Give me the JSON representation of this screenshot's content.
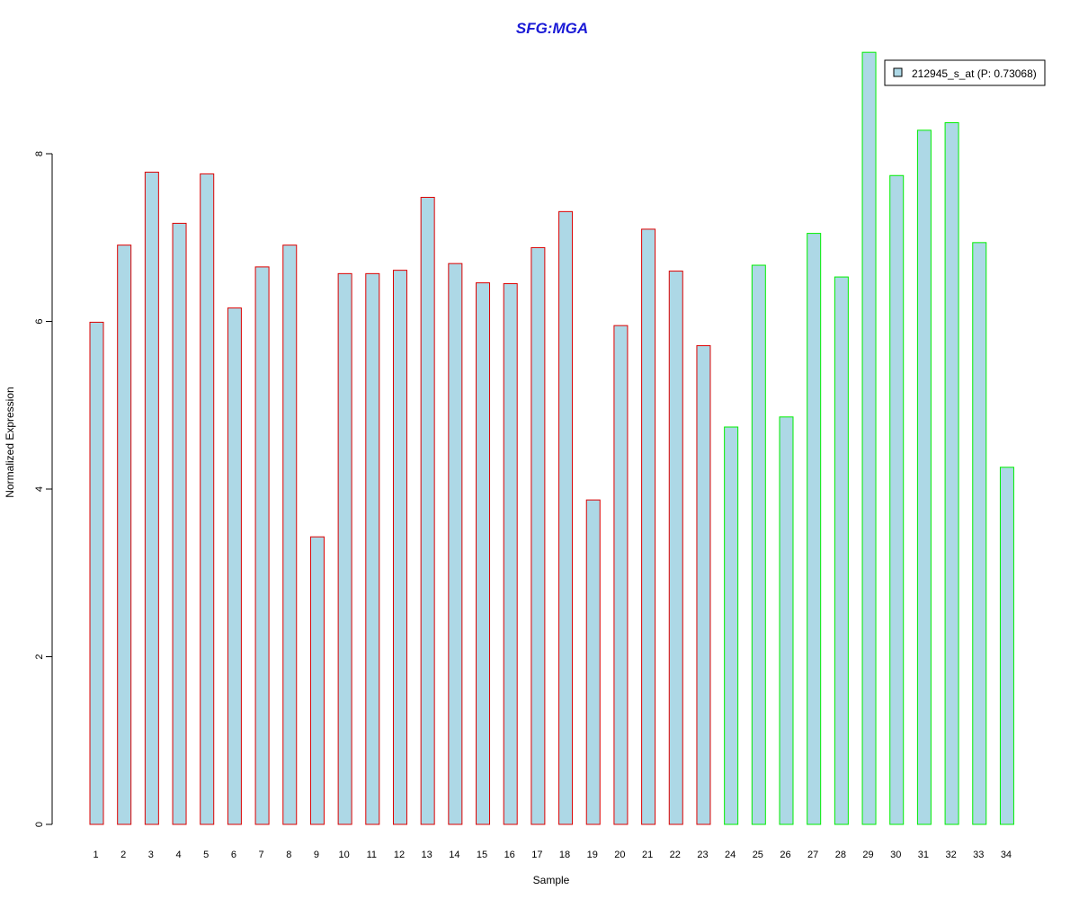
{
  "chart_data": {
    "type": "bar",
    "title": "SFG:MGA",
    "xlabel": "Sample",
    "ylabel": "Normalized Expression",
    "ylim": [
      0,
      9.3
    ],
    "y_ticks": [
      0,
      2,
      4,
      6,
      8
    ],
    "categories": [
      "1",
      "2",
      "3",
      "4",
      "5",
      "6",
      "7",
      "8",
      "9",
      "10",
      "11",
      "12",
      "13",
      "14",
      "15",
      "16",
      "17",
      "18",
      "19",
      "20",
      "21",
      "22",
      "23",
      "24",
      "25",
      "26",
      "27",
      "28",
      "29",
      "30",
      "31",
      "32",
      "33",
      "34"
    ],
    "series": [
      {
        "name": "212945_s_at (P: 0.73068)",
        "fill_color": "#add8e6",
        "values": [
          5.99,
          6.91,
          7.78,
          7.17,
          7.76,
          6.16,
          6.65,
          6.91,
          3.43,
          6.57,
          6.57,
          6.61,
          7.48,
          6.69,
          6.46,
          6.45,
          6.88,
          7.31,
          3.87,
          5.95,
          7.1,
          6.6,
          5.71,
          4.74,
          6.67,
          4.86,
          7.05,
          6.53,
          9.21,
          7.74,
          8.28,
          8.37,
          6.94,
          4.26
        ]
      }
    ],
    "bar_border_colors": [
      "#dd0000",
      "#dd0000",
      "#dd0000",
      "#dd0000",
      "#dd0000",
      "#dd0000",
      "#dd0000",
      "#dd0000",
      "#dd0000",
      "#dd0000",
      "#dd0000",
      "#dd0000",
      "#dd0000",
      "#dd0000",
      "#dd0000",
      "#dd0000",
      "#dd0000",
      "#dd0000",
      "#dd0000",
      "#dd0000",
      "#dd0000",
      "#dd0000",
      "#dd0000",
      "#00ee00",
      "#00ee00",
      "#00ee00",
      "#00ee00",
      "#00ee00",
      "#00ee00",
      "#00ee00",
      "#00ee00",
      "#00ee00",
      "#00ee00",
      "#00ee00"
    ],
    "legend": {
      "position": "top-right",
      "label": "212945_s_at (P: 0.73068)"
    },
    "grid": false
  }
}
